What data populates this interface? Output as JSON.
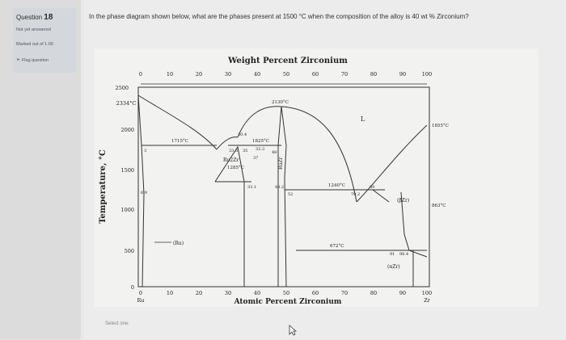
{
  "question": {
    "number_prefix": "Question",
    "number": "18",
    "status": "Not yet answered",
    "marks": "Marked out of 1.00",
    "flag": "Flag question",
    "text": "In the phase diagram shown below, what are the phases present at 1500 °C when the composition of the alloy is 40 wt % Zirconium?",
    "select_prompt": "Select one:"
  },
  "diagram": {
    "top_axis_title": "Weight Percent Zirconium",
    "top_ticks": [
      "0",
      "10",
      "20",
      "30",
      "40",
      "50",
      "60",
      "70",
      "80",
      "90",
      "100"
    ],
    "bottom_axis_title": "Atomic Percent Zirconium",
    "bottom_ticks": [
      "0",
      "10",
      "20",
      "30",
      "40",
      "50",
      "60",
      "70",
      "80",
      "90",
      "100"
    ],
    "y_axis_title": "Temperature, °C",
    "y_ticks": [
      "0",
      "500",
      "1000",
      "1500",
      "2000",
      "2500"
    ],
    "left_label": "Ru",
    "right_label": "Zr",
    "annotations": {
      "t_ru_melt": "2334°C",
      "t_zr_melt": "1855°C",
      "t_peak": "2130°C",
      "t_1715": "1715°C",
      "t_1825": "1825°C",
      "t_1240": "1240°C",
      "t_1285": "1285°C",
      "t_863": "863°C",
      "t_672": "672°C",
      "liquid": "L",
      "ru_phase": "(Ru)",
      "ru2zr": "Ru2Zr",
      "ruzr": "RuZr",
      "beta_zr": "(βZr)",
      "alpha_zr": "(αZr)",
      "c_3": "3",
      "c_69": "6.9",
      "c_304": "30.4",
      "c_335": "33.5",
      "c_333": "33.3",
      "c_35": "35",
      "c_37": "37",
      "c_48": "48",
      "c_331": "33.1",
      "c_482": "48.2",
      "c_52": "52",
      "c_792": "79.2",
      "c_89": "89",
      "c_91": "91",
      "c_984": "98.4"
    }
  }
}
